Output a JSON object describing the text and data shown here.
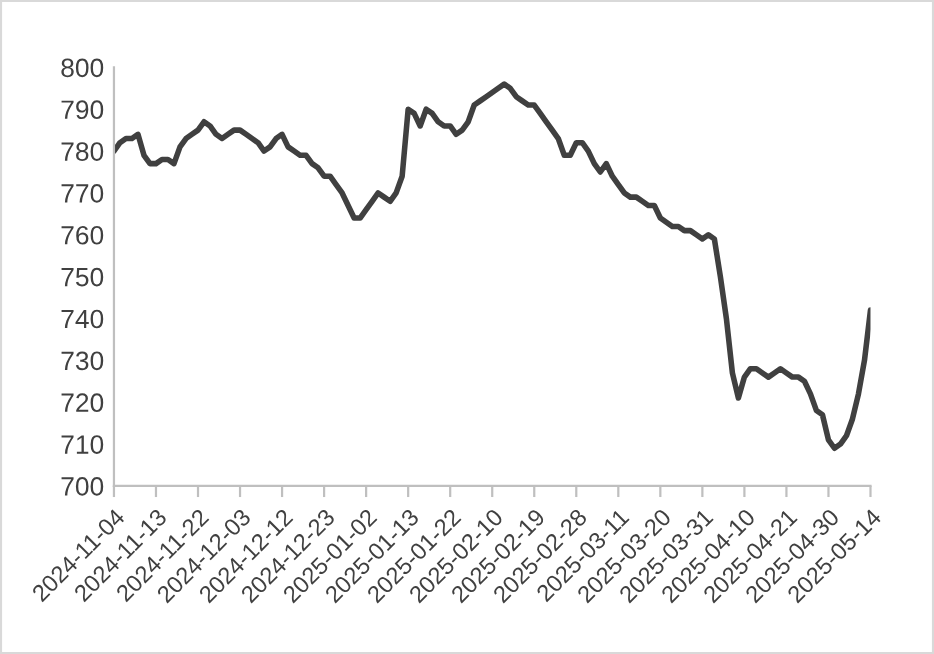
{
  "chart_data": {
    "type": "line",
    "categories": [
      "2024-11-04",
      null,
      null,
      null,
      null,
      null,
      null,
      "2024-11-13",
      null,
      null,
      null,
      null,
      null,
      null,
      "2024-11-22",
      null,
      null,
      null,
      null,
      null,
      null,
      "2024-12-03",
      null,
      null,
      null,
      null,
      null,
      null,
      "2024-12-12",
      null,
      null,
      null,
      null,
      null,
      null,
      "2024-12-23",
      null,
      null,
      null,
      null,
      null,
      null,
      "2025-01-02",
      null,
      null,
      null,
      null,
      null,
      null,
      "2025-01-13",
      null,
      null,
      null,
      null,
      null,
      null,
      "2025-01-22",
      null,
      null,
      null,
      null,
      null,
      null,
      "2025-02-10",
      null,
      null,
      null,
      null,
      null,
      null,
      "2025-02-19",
      null,
      null,
      null,
      null,
      null,
      null,
      "2025-02-28",
      null,
      null,
      null,
      null,
      null,
      null,
      "2025-03-11",
      null,
      null,
      null,
      null,
      null,
      null,
      "2025-03-20",
      null,
      null,
      null,
      null,
      null,
      null,
      "2025-03-31",
      null,
      null,
      null,
      null,
      null,
      null,
      "2025-04-10",
      null,
      null,
      null,
      null,
      null,
      null,
      "2025-04-21",
      null,
      null,
      null,
      null,
      null,
      null,
      "2025-04-30",
      null,
      null,
      null,
      null,
      null,
      null,
      "2025-05-14"
    ],
    "series": [
      {
        "color": "#404040",
        "values": [
          780,
          782,
          783,
          783,
          784,
          779,
          777,
          777,
          778,
          778,
          777,
          781,
          783,
          784,
          785,
          787,
          786,
          784,
          783,
          784,
          785,
          785,
          784,
          783,
          782,
          780,
          781,
          783,
          784,
          781,
          780,
          779,
          779,
          777,
          776,
          774,
          774,
          772,
          770,
          767,
          764,
          764,
          766,
          768,
          770,
          769,
          768,
          770,
          774,
          790,
          789,
          786,
          790,
          789,
          787,
          786,
          786,
          784,
          785,
          787,
          791,
          792,
          793,
          794,
          795,
          796,
          795,
          793,
          792,
          791,
          791,
          789,
          787,
          785,
          783,
          779,
          779,
          782,
          782,
          780,
          777,
          775,
          777,
          774,
          772,
          770,
          769,
          769,
          768,
          767,
          767,
          764,
          763,
          762,
          762,
          761,
          761,
          760,
          759,
          760,
          759,
          750,
          740,
          727,
          721,
          726,
          728,
          728,
          727,
          726,
          727,
          728,
          727,
          726,
          726,
          725,
          722,
          718,
          717,
          711,
          709,
          710,
          712,
          716,
          722,
          730,
          742
        ]
      }
    ],
    "ylim": [
      700,
      800
    ],
    "yticks": [
      700,
      710,
      720,
      730,
      740,
      750,
      760,
      770,
      780,
      790,
      800
    ],
    "grid": false,
    "legend": false,
    "marker": "none",
    "line_style": "solid"
  }
}
